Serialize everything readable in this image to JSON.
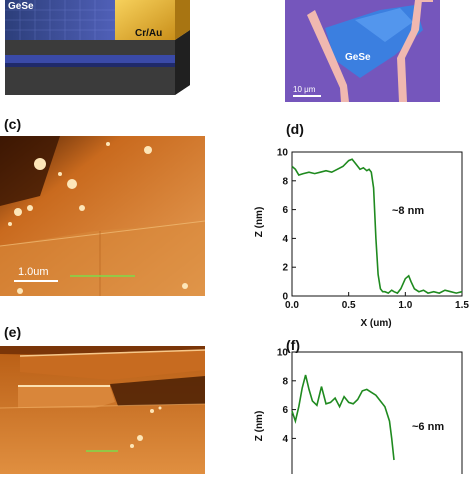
{
  "panel_a": {
    "label_gese": "GeSe",
    "label_electrode": "Cr/Au"
  },
  "panel_b": {
    "label_gese": "GeSe",
    "scale_text": "10 μm"
  },
  "panel_c": {
    "label": "(c)",
    "scale_text": "1.0um"
  },
  "panel_d": {
    "label": "(d)",
    "annotation": "~8 nm"
  },
  "panel_e": {
    "label": "(e)"
  },
  "panel_f": {
    "label": "(f)",
    "annotation": "~6 nm"
  },
  "colors": {
    "profile_line": "#1f8a1f",
    "afm_dark": "#4a1e04",
    "afm_light": "#e59a4b",
    "optical_bg": "#6b4fb5",
    "flake_blue": "#3b7fe0",
    "electrode_pink": "#f0b8b0"
  },
  "chart_data": [
    {
      "type": "line",
      "panel": "(d)",
      "xlabel": "X (um)",
      "ylabel": "Z (nm)",
      "xlim": [
        0,
        1.5
      ],
      "ylim": [
        0,
        10
      ],
      "xticks": [
        "0.0",
        "0.5",
        "1.0",
        "1.5"
      ],
      "yticks": [
        "0",
        "2",
        "4",
        "6",
        "8",
        "10"
      ],
      "grid": false,
      "x": [
        0.0,
        0.03,
        0.06,
        0.1,
        0.15,
        0.2,
        0.25,
        0.3,
        0.35,
        0.4,
        0.45,
        0.5,
        0.53,
        0.56,
        0.6,
        0.63,
        0.66,
        0.68,
        0.7,
        0.72,
        0.74,
        0.76,
        0.78,
        0.8,
        0.82,
        0.85,
        0.88,
        0.9,
        0.93,
        0.96,
        1.0,
        1.03,
        1.05,
        1.08,
        1.12,
        1.16,
        1.2,
        1.25,
        1.3,
        1.35,
        1.4,
        1.45,
        1.5
      ],
      "y": [
        9.0,
        8.8,
        8.4,
        8.5,
        8.6,
        8.5,
        8.6,
        8.7,
        8.6,
        8.8,
        9.0,
        9.4,
        9.5,
        9.2,
        8.8,
        8.9,
        8.7,
        8.8,
        8.6,
        7.5,
        4.0,
        1.5,
        0.5,
        0.3,
        0.3,
        0.2,
        0.4,
        0.3,
        0.2,
        0.5,
        1.2,
        1.4,
        1.0,
        0.5,
        0.3,
        0.4,
        0.2,
        0.3,
        0.2,
        0.4,
        0.3,
        0.2,
        0.3
      ]
    },
    {
      "type": "line",
      "panel": "(f)",
      "xlabel": "",
      "ylabel": "Z (nm)",
      "xlim": [
        0,
        1.5
      ],
      "ylim": [
        0,
        10
      ],
      "yticks": [
        "4",
        "6",
        "8",
        "10"
      ],
      "grid": false,
      "x": [
        0.0,
        0.03,
        0.06,
        0.09,
        0.12,
        0.15,
        0.18,
        0.22,
        0.26,
        0.3,
        0.34,
        0.38,
        0.42,
        0.46,
        0.5,
        0.54,
        0.58,
        0.62,
        0.66,
        0.7,
        0.74,
        0.78,
        0.82,
        0.86,
        0.88,
        0.9
      ],
      "y": [
        5.9,
        5.2,
        6.2,
        7.5,
        8.4,
        7.4,
        6.6,
        6.3,
        7.6,
        6.4,
        6.5,
        6.8,
        6.2,
        6.9,
        6.5,
        6.4,
        6.7,
        7.3,
        7.4,
        7.2,
        7.0,
        6.6,
        6.2,
        5.2,
        4.0,
        2.5
      ]
    }
  ]
}
